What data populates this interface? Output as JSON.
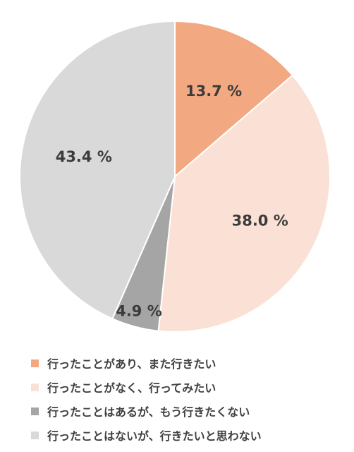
{
  "chart_data": {
    "type": "pie",
    "title": "",
    "start_angle_deg": 0,
    "direction": "clockwise",
    "legend_position": "bottom",
    "categories": [
      "行ったことがあり、また行きたい",
      "行ったことがなく、行ってみたい",
      "行ったことはあるが、もう行きたくない",
      "行ったことはないが、行きたいと思わない"
    ],
    "values": [
      13.7,
      38.0,
      4.9,
      43.4
    ],
    "data_labels": [
      "13.7 %",
      "38.0 %",
      "4.9 %",
      "43.4 %"
    ],
    "colors": [
      "#f2a982",
      "#fbe1d5",
      "#a5a5a5",
      "#d9d9d9"
    ]
  }
}
